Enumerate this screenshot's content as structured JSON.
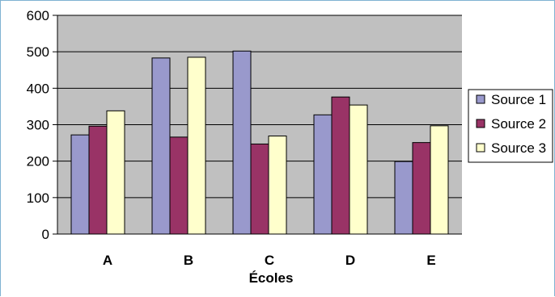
{
  "chart_data": {
    "type": "bar",
    "categories": [
      "A",
      "B",
      "C",
      "D",
      "E"
    ],
    "series": [
      {
        "name": "Source 1",
        "values": [
          272,
          483,
          502,
          327,
          199
        ],
        "color": "#9999cc"
      },
      {
        "name": "Source 2",
        "values": [
          296,
          266,
          247,
          376,
          251
        ],
        "color": "#993366"
      },
      {
        "name": "Source 3",
        "values": [
          338,
          485,
          269,
          354,
          297
        ],
        "color": "#ffffcc"
      }
    ],
    "title": "",
    "xlabel": "Écoles",
    "ylabel": "",
    "ylim": [
      0,
      600
    ],
    "yticks": [
      "0",
      "100",
      "200",
      "300",
      "400",
      "500",
      "600"
    ],
    "grid": true,
    "legend_position": "right",
    "plot_background": "#c0c0c0",
    "gridline_color": "#000000",
    "frame_color": "#7fb2d2",
    "bar_outline_color": "#000000"
  }
}
